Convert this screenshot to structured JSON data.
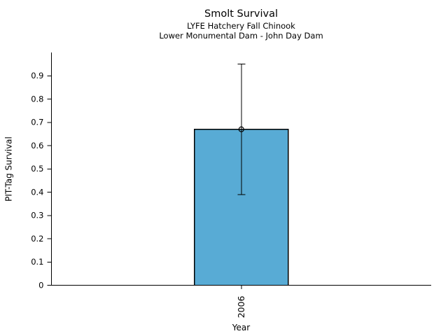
{
  "chart_data": {
    "type": "bar",
    "title": "Smolt Survival",
    "subtitle": [
      "LYFE Hatchery Fall Chinook",
      "Lower Monumental Dam - John Day Dam"
    ],
    "xlabel": "Year",
    "ylabel": "PIT-Tag Survival",
    "categories": [
      "2006"
    ],
    "values": [
      0.67
    ],
    "error_bars": [
      {
        "low": 0.39,
        "high": 0.95
      }
    ],
    "marker": "open-circle",
    "ylim": [
      0,
      1.0
    ],
    "yticks": [
      "0",
      "0.1",
      "0.2",
      "0.3",
      "0.4",
      "0.5",
      "0.6",
      "0.7",
      "0.8",
      "0.9"
    ],
    "grid": false,
    "legend": null,
    "bar_color": "#58abd5",
    "bar_edge_color": "#000000",
    "error_color": "#000000",
    "background": "#ffffff"
  }
}
